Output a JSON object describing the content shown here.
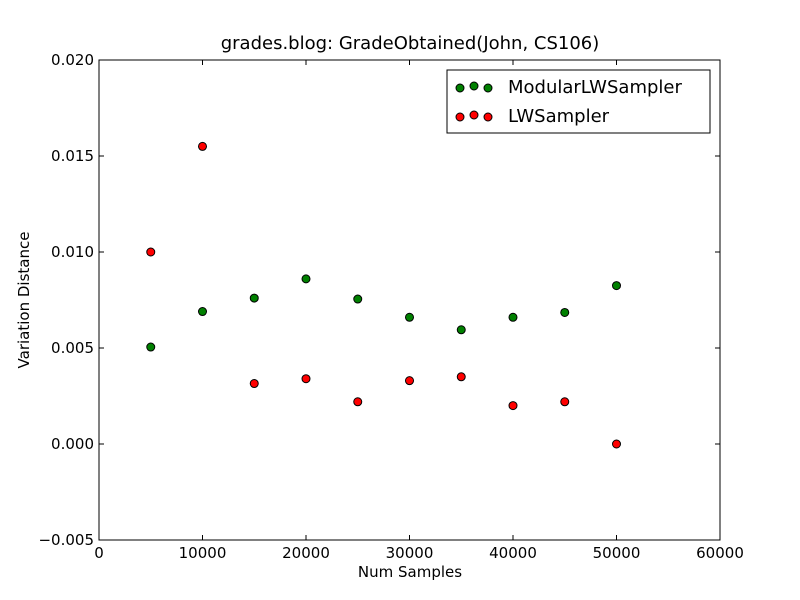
{
  "chart_data": {
    "type": "scatter",
    "title": "grades.blog: GradeObtained(John, CS106)",
    "xlabel": "Num Samples",
    "ylabel": "Variation Distance",
    "xlim": [
      0,
      60000
    ],
    "ylim": [
      -0.005,
      0.02
    ],
    "x_ticks": [
      0,
      10000,
      20000,
      30000,
      40000,
      50000,
      60000
    ],
    "x_tick_labels": [
      "0",
      "10000",
      "20000",
      "30000",
      "40000",
      "50000",
      "60000"
    ],
    "y_ticks": [
      -0.005,
      0.0,
      0.005,
      0.01,
      0.015,
      0.02
    ],
    "y_tick_labels": [
      "−0.005",
      "0.000",
      "0.005",
      "0.010",
      "0.015",
      "0.020"
    ],
    "grid": false,
    "legend_position": "top-right",
    "series": [
      {
        "name": "ModularLWSampler",
        "color": "#008000",
        "x": [
          5000,
          10000,
          15000,
          20000,
          25000,
          30000,
          35000,
          40000,
          45000,
          50000
        ],
        "y": [
          0.00505,
          0.0069,
          0.0076,
          0.0086,
          0.00755,
          0.0066,
          0.00595,
          0.0066,
          0.00685,
          0.00825
        ]
      },
      {
        "name": "LWSampler",
        "color": "#ff0000",
        "x": [
          5000,
          10000,
          15000,
          20000,
          25000,
          30000,
          35000,
          40000,
          45000,
          50000
        ],
        "y": [
          0.01,
          0.0155,
          0.00315,
          0.0034,
          0.0022,
          0.0033,
          0.0035,
          0.002,
          0.0022,
          0.0
        ]
      }
    ]
  }
}
